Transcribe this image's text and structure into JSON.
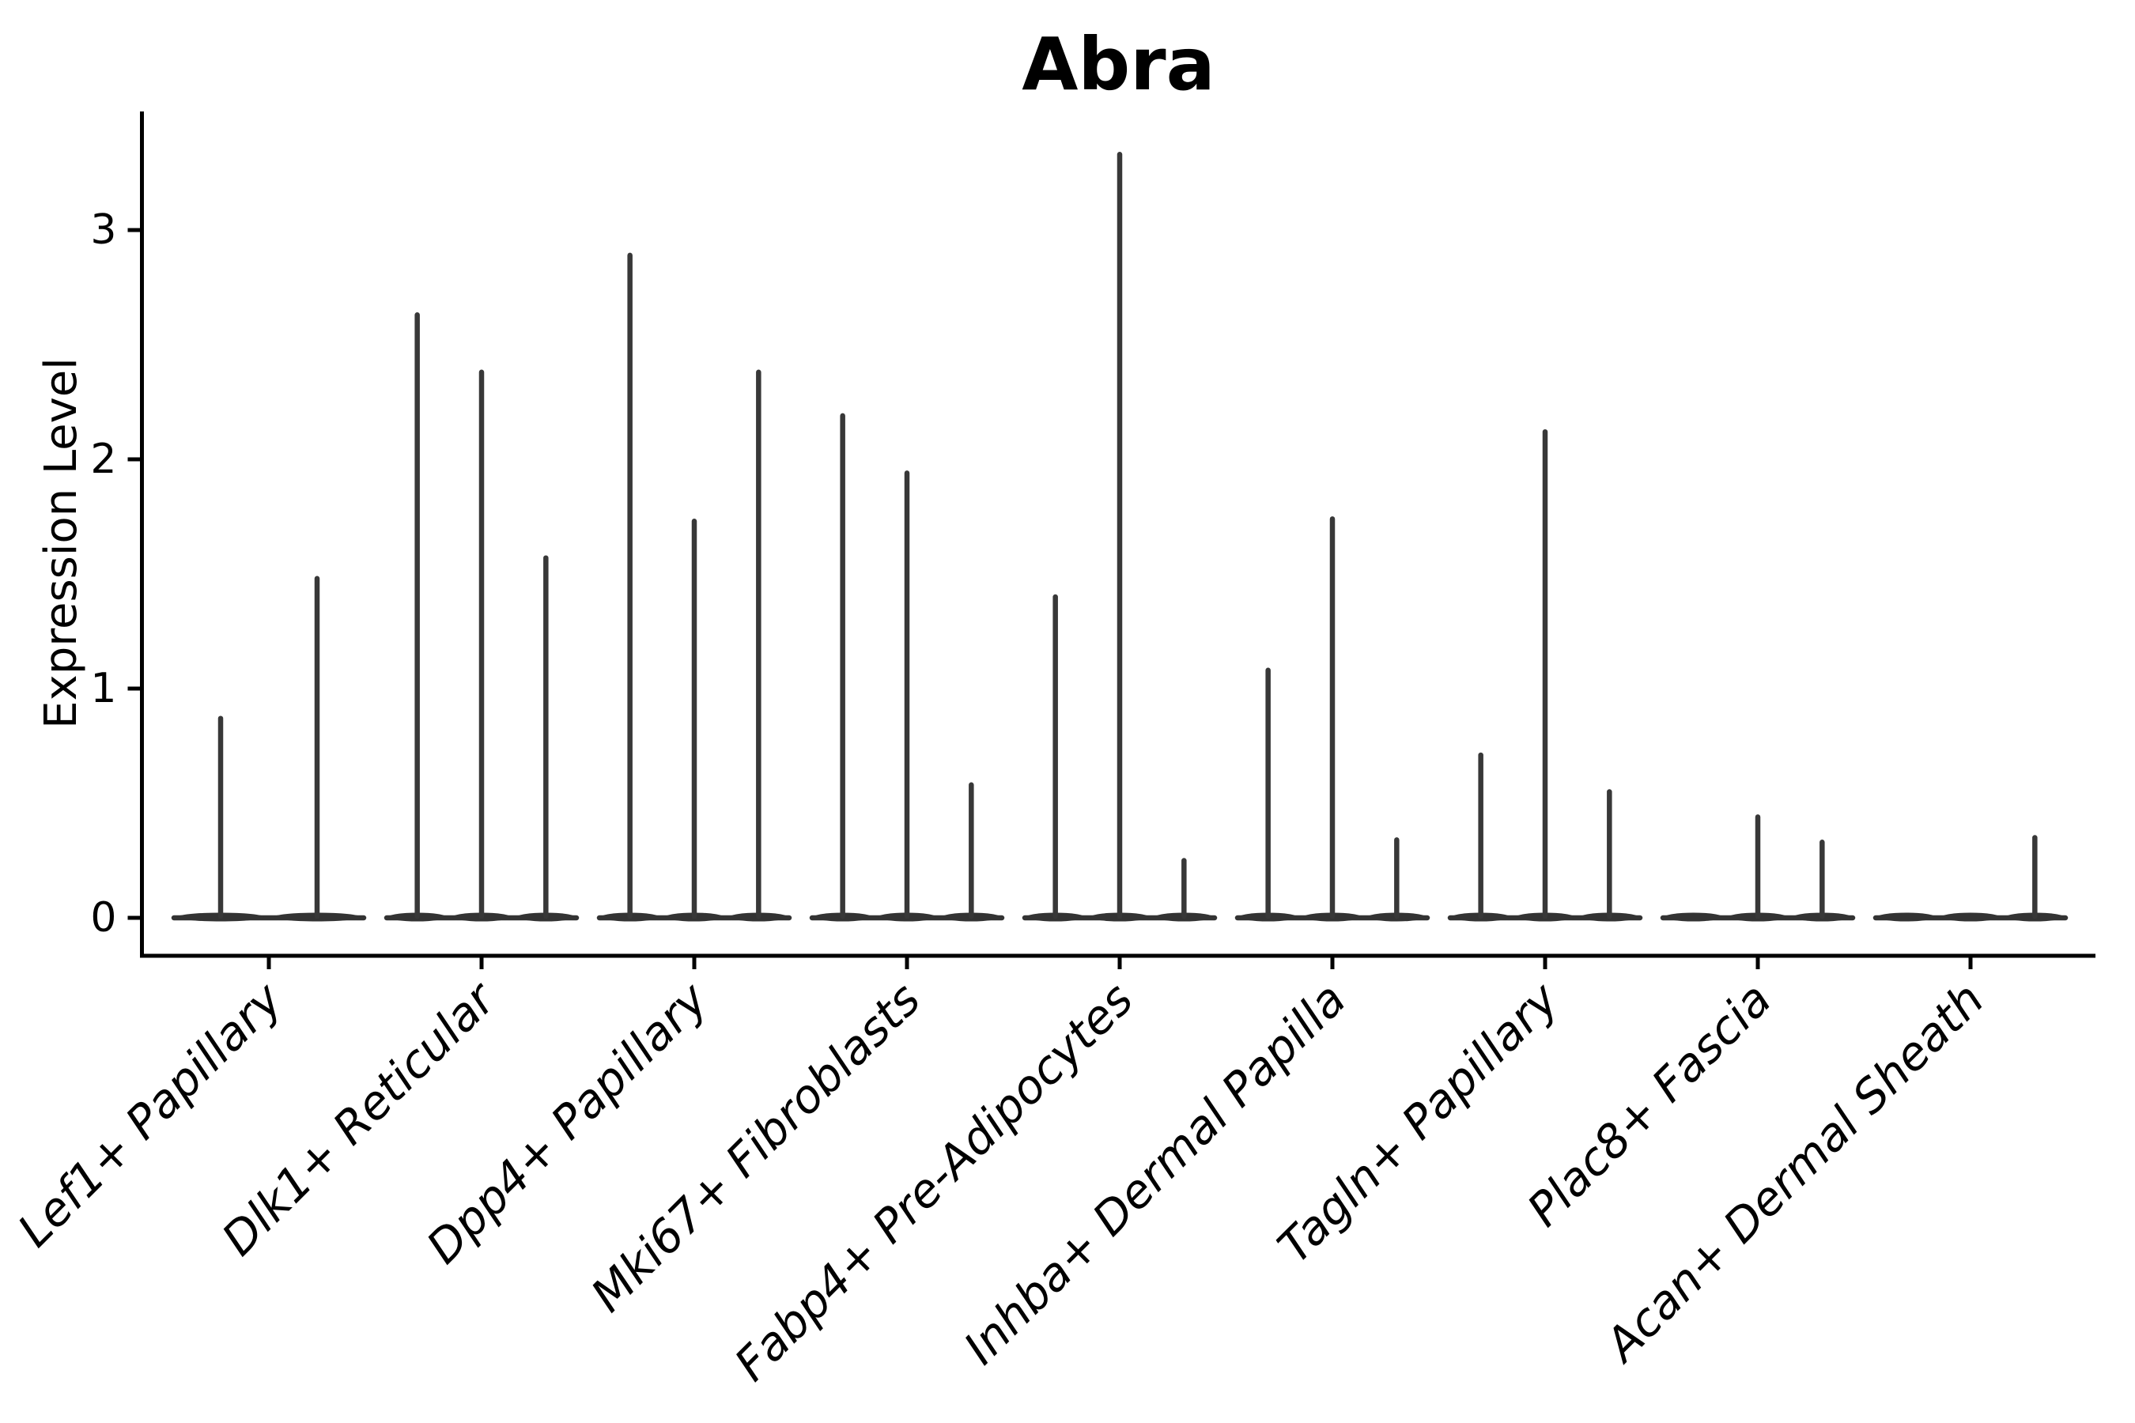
{
  "title": "Abra",
  "y_axis": {
    "label": "Expression Level",
    "tick_labels": [
      "0",
      "1",
      "2",
      "3"
    ],
    "tick_values": [
      0,
      1,
      2,
      3
    ]
  },
  "colors": {
    "axis": "#000000",
    "violin_stroke": "#383838",
    "baseline": "#333333",
    "text": "#000000",
    "background": "#ffffff"
  },
  "chart_data": {
    "type": "violin",
    "title": "Abra",
    "xlabel": "",
    "ylabel": "Expression Level",
    "ylim": [
      -0.17,
      3.53
    ],
    "yticks": [
      0,
      1,
      2,
      3
    ],
    "grid": false,
    "legend": "none",
    "note": "Stacked-violin style gene expression plot; each category shows thin spike violins (max expression tails) rising from a flat baseline at 0.",
    "categories": [
      "Lef1+ Papillary",
      "Dlk1+ Reticular",
      "Dpp4+ Papillary",
      "Mki67+ Fibroblasts",
      "Fabp4+ Pre-Adipocytes",
      "Inhba+ Dermal Papilla",
      "Tagln+ Papillary",
      "Plac8+ Fascia",
      "Acan+ Dermal Sheath"
    ],
    "groups": [
      {
        "label": "Lef1+ Papillary",
        "violin_max_values": [
          0.87,
          1.48
        ]
      },
      {
        "label": "Dlk1+ Reticular",
        "violin_max_values": [
          2.63,
          2.38,
          1.57
        ]
      },
      {
        "label": "Dpp4+ Papillary",
        "violin_max_values": [
          2.89,
          1.73,
          2.38
        ]
      },
      {
        "label": "Mki67+ Fibroblasts",
        "violin_max_values": [
          2.19,
          1.94,
          0.58
        ]
      },
      {
        "label": "Fabp4+ Pre-Adipocytes",
        "violin_max_values": [
          1.4,
          3.33,
          0.25
        ]
      },
      {
        "label": "Inhba+ Dermal Papilla",
        "violin_max_values": [
          1.08,
          1.74,
          0.34
        ]
      },
      {
        "label": "Tagln+ Papillary",
        "violin_max_values": [
          0.71,
          2.12,
          0.55
        ]
      },
      {
        "label": "Plac8+ Fascia",
        "violin_max_values": [
          0,
          0.44,
          0.33
        ]
      },
      {
        "label": "Acan+ Dermal Sheath",
        "violin_max_values": [
          0,
          0,
          0.35
        ]
      }
    ]
  }
}
